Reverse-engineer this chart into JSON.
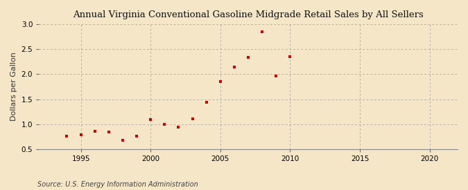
{
  "title": "Annual Virginia Conventional Gasoline Midgrade Retail Sales by All Sellers",
  "ylabel": "Dollars per Gallon",
  "source": "Source: U.S. Energy Information Administration",
  "background_color": "#f5e6c8",
  "plot_bg_color": "#f5e6c8",
  "marker_color": "#cc0000",
  "xlim": [
    1992,
    2022
  ],
  "ylim": [
    0.5,
    3.0
  ],
  "xticks": [
    1995,
    2000,
    2005,
    2010,
    2015,
    2020
  ],
  "yticks": [
    0.5,
    1.0,
    1.5,
    2.0,
    2.5,
    3.0
  ],
  "years": [
    1994,
    1995,
    1996,
    1997,
    1998,
    1999,
    2000,
    2001,
    2002,
    2003,
    2004,
    2005,
    2006,
    2007,
    2008,
    2009,
    2010
  ],
  "values": [
    0.76,
    0.79,
    0.86,
    0.85,
    0.68,
    0.76,
    1.09,
    1.0,
    0.95,
    1.11,
    1.44,
    1.85,
    2.14,
    2.33,
    2.84,
    1.96,
    2.35
  ]
}
